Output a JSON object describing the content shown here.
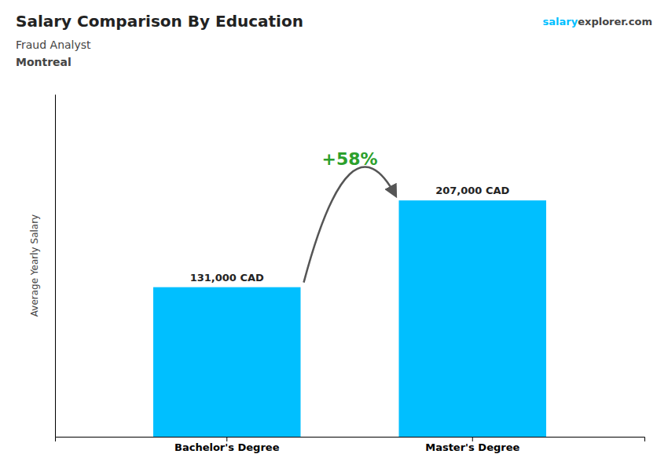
{
  "chart_data": {
    "type": "bar",
    "title": "Salary Comparison By Education",
    "subtitle": [
      "Fraud Analyst",
      "Montreal"
    ],
    "ylabel": "Average Yearly Salary",
    "categories": [
      "Bachelor's Degree",
      "Master's Degree"
    ],
    "values": [
      131000,
      207000
    ],
    "value_labels": [
      "131,000 CAD",
      "207,000 CAD"
    ],
    "data_labels": true,
    "color": "#00BFFF",
    "ylim": [
      0,
      300000
    ],
    "tick_labels": "x",
    "grid": false,
    "annotations": [
      "+58%",
      "salary",
      "explorer.com"
    ]
  }
}
